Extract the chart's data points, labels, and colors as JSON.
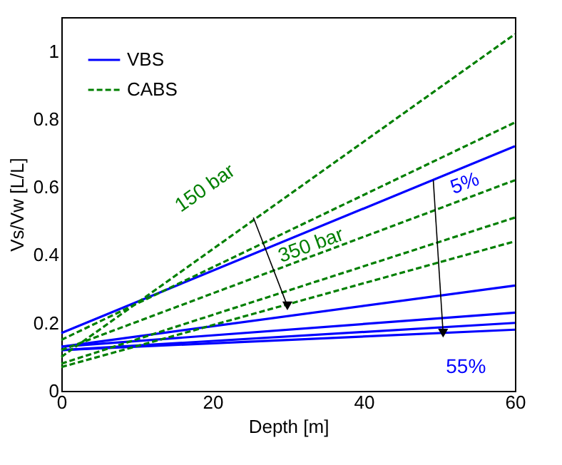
{
  "chart_data": {
    "type": "line",
    "xlabel": "Depth [m]",
    "ylabel": "Vs/Vw [L/L]",
    "x": [
      0,
      60
    ],
    "xlim": [
      0,
      60
    ],
    "xticks": [
      0,
      20,
      40,
      60
    ],
    "ylim": [
      0,
      1.1
    ],
    "yticks": [
      0,
      0.2,
      0.4,
      0.6,
      0.8,
      1
    ],
    "grid": false,
    "legend": "top left",
    "marker": "none",
    "series": [
      {
        "name": "VBS",
        "color": "#0000ff",
        "line_style": "solid",
        "values": [
          0.17,
          0.72
        ]
      },
      {
        "color": "#0000ff",
        "line_style": "solid",
        "values": [
          0.13,
          0.31
        ]
      },
      {
        "color": "#0000ff",
        "line_style": "solid",
        "values": [
          0.13,
          0.23
        ]
      },
      {
        "color": "#0000ff",
        "line_style": "solid",
        "values": [
          0.12,
          0.2
        ]
      },
      {
        "color": "#0000ff",
        "line_style": "solid",
        "values": [
          0.12,
          0.18
        ]
      },
      {
        "name": "CABS",
        "color": "#007f00",
        "line_style": "dashed",
        "values": [
          0.1,
          1.05
        ]
      },
      {
        "color": "#007f00",
        "line_style": "dashed",
        "values": [
          0.15,
          0.79
        ]
      },
      {
        "color": "#007f00",
        "line_style": "dashed",
        "values": [
          0.12,
          0.62
        ]
      },
      {
        "color": "#007f00",
        "line_style": "dashed",
        "values": [
          0.08,
          0.51
        ]
      },
      {
        "color": "#007f00",
        "line_style": "dashed",
        "values": [
          0.07,
          0.44
        ]
      }
    ],
    "annotations": [
      {
        "text": "150 bar",
        "x": 25.4,
        "y": 0.51
      },
      {
        "text": "350 bar",
        "x": 29.9,
        "y": 0.25
      },
      {
        "text": "5%",
        "x": 49.2,
        "y": 0.62
      },
      {
        "text": "55%",
        "x": 50.5,
        "y": 0.17
      }
    ]
  }
}
